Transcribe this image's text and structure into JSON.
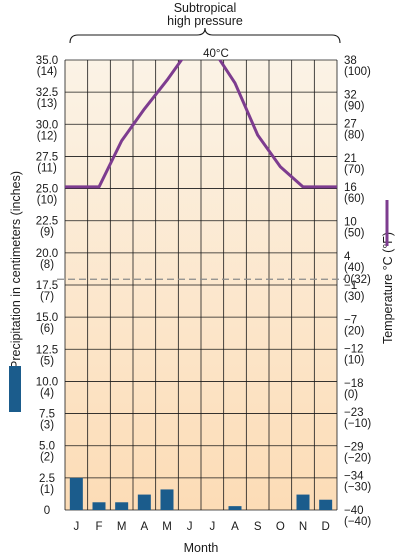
{
  "chart_data": {
    "type": "climograph",
    "title": "",
    "xlabel": "Month",
    "ylabel_left": "Precipitation in centimeters (inches)",
    "ylabel_right": "Temperature °C (°F)",
    "annotation": "Subtropical\nhigh pressure",
    "peak_label": "40°C",
    "categories": [
      "J",
      "F",
      "M",
      "A",
      "M",
      "J",
      "J",
      "A",
      "S",
      "O",
      "N",
      "D"
    ],
    "left_axis": {
      "ylim": [
        0,
        35
      ],
      "ticks": [
        {
          "value": 35.0,
          "cm": "35.0",
          "in": "(14)"
        },
        {
          "value": 32.5,
          "cm": "32.5",
          "in": "(13)"
        },
        {
          "value": 30.0,
          "cm": "30.0",
          "in": "(12)"
        },
        {
          "value": 27.5,
          "cm": "27.5",
          "in": "(11)"
        },
        {
          "value": 25.0,
          "cm": "25.0",
          "in": "(10)"
        },
        {
          "value": 22.5,
          "cm": "22.5",
          "in": "(9)"
        },
        {
          "value": 20.0,
          "cm": "20.0",
          "in": "(8)"
        },
        {
          "value": 17.5,
          "cm": "17.5",
          "in": "(7)"
        },
        {
          "value": 15.0,
          "cm": "15.0",
          "in": "(6)"
        },
        {
          "value": 12.5,
          "cm": "12.5",
          "in": "(5)"
        },
        {
          "value": 10.0,
          "cm": "10.0",
          "in": "(4)"
        },
        {
          "value": 7.5,
          "cm": "7.5",
          "in": "(3)"
        },
        {
          "value": 5.0,
          "cm": "5.0",
          "in": "(2)"
        },
        {
          "value": 2.5,
          "cm": "2.5",
          "in": "(1)"
        },
        {
          "value": 0,
          "cm": "0",
          "in": ""
        }
      ]
    },
    "right_axis": {
      "ylim": [
        -40,
        38
      ],
      "ticks": [
        {
          "value": 38,
          "c": "38",
          "f": "(100)"
        },
        {
          "value": 32,
          "c": "32",
          "f": "(90)"
        },
        {
          "value": 27,
          "c": "27",
          "f": "(80)"
        },
        {
          "value": 21,
          "c": "21",
          "f": "(70)"
        },
        {
          "value": 16,
          "c": "16",
          "f": "(60)"
        },
        {
          "value": 10,
          "c": "10",
          "f": "(50)"
        },
        {
          "value": 4,
          "c": "4",
          "f": "(40)"
        },
        {
          "value": 0,
          "c": "0(32)",
          "f": ""
        },
        {
          "value": -1,
          "c": "−1",
          "f": "(30)"
        },
        {
          "value": -7,
          "c": "−7",
          "f": "(20)"
        },
        {
          "value": -12,
          "c": "−12",
          "f": "(10)"
        },
        {
          "value": -18,
          "c": "−18",
          "f": "(0)"
        },
        {
          "value": -23,
          "c": "−23",
          "f": "(−10)"
        },
        {
          "value": -29,
          "c": "−29",
          "f": "(−20)"
        },
        {
          "value": -34,
          "c": "−34",
          "f": "(−30)"
        },
        {
          "value": -40,
          "c": "−40",
          "f": "(−40)"
        }
      ]
    },
    "freezing_line": 0,
    "series": [
      {
        "kind": "bar",
        "axis": "left",
        "values": [
          2.5,
          0.6,
          0.6,
          1.2,
          1.6,
          0,
          0,
          0.3,
          0,
          0,
          1.2,
          0.8
        ]
      },
      {
        "kind": "line",
        "axis": "right",
        "values": [
          16,
          16,
          24,
          29.5,
          34.5,
          40,
          40,
          34,
          25,
          19.5,
          16,
          16
        ]
      }
    ],
    "colors": {
      "bar": "#1b5c8c",
      "line": "#7d3c8f",
      "grid": "#1a1a1a",
      "freezing": "#8a8a8a",
      "bg_top": "#fbf3e6",
      "bg_bottom": "#fcdcb6"
    },
    "grid": true,
    "legend_markers": [
      "precipitation-bar",
      "temperature-line"
    ]
  }
}
